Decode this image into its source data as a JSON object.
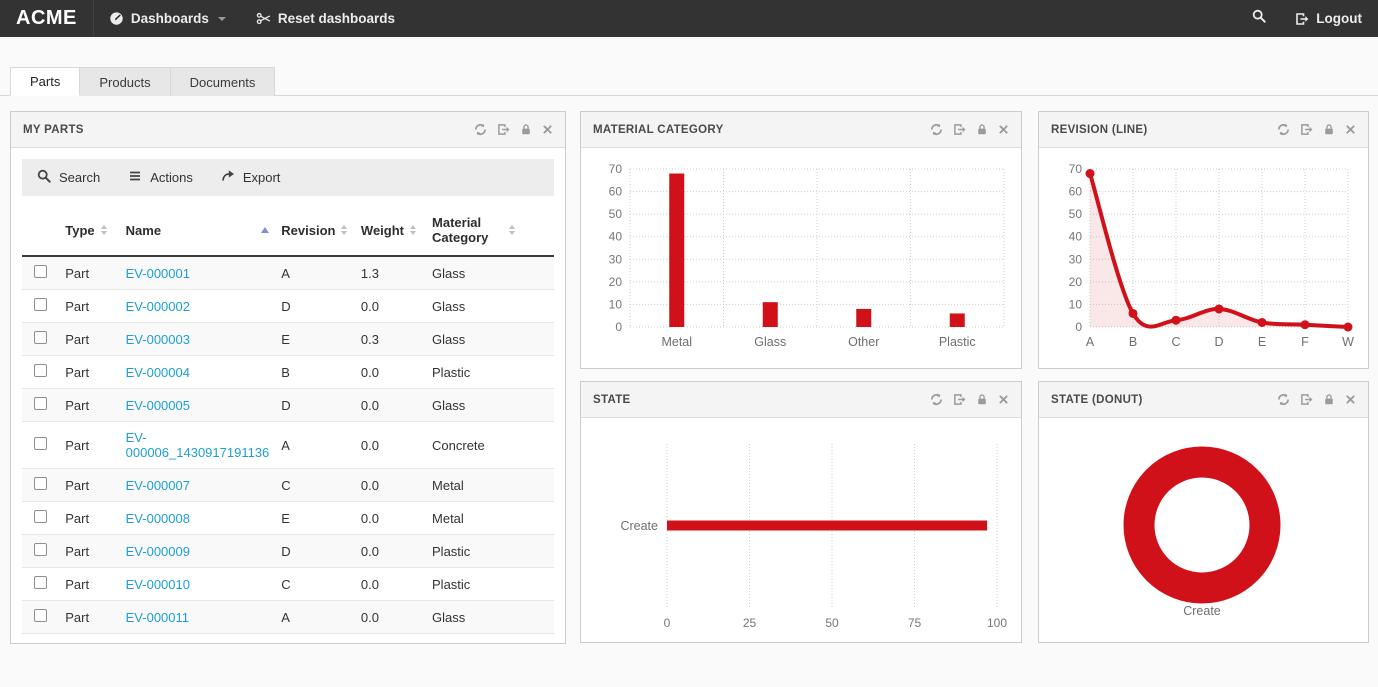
{
  "navbar": {
    "brand": "ACME",
    "dashboards_label": "Dashboards",
    "reset_label": "Reset dashboards",
    "logout_label": "Logout"
  },
  "tabs": {
    "parts": "Parts",
    "products": "Products",
    "documents": "Documents"
  },
  "panels": {
    "my_parts": {
      "title": "MY PARTS",
      "toolbar": {
        "search_label": "Search",
        "actions_label": "Actions",
        "export_label": "Export"
      },
      "table": {
        "columns": {
          "type": "Type",
          "name": "Name",
          "revision": "Revision",
          "weight": "Weight",
          "material": "Material Category"
        },
        "sort": {
          "column": "Name",
          "direction": "ascending"
        },
        "rows": [
          {
            "type": "Part",
            "name": "EV-000001",
            "revision": "A",
            "weight": "1.3",
            "material": "Glass"
          },
          {
            "type": "Part",
            "name": "EV-000002",
            "revision": "D",
            "weight": "0.0",
            "material": "Glass"
          },
          {
            "type": "Part",
            "name": "EV-000003",
            "revision": "E",
            "weight": "0.3",
            "material": "Glass"
          },
          {
            "type": "Part",
            "name": "EV-000004",
            "revision": "B",
            "weight": "0.0",
            "material": "Plastic"
          },
          {
            "type": "Part",
            "name": "EV-000005",
            "revision": "D",
            "weight": "0.0",
            "material": "Glass"
          },
          {
            "type": "Part",
            "name": "EV-000006_1430917191136",
            "revision": "A",
            "weight": "0.0",
            "material": "Concrete"
          },
          {
            "type": "Part",
            "name": "EV-000007",
            "revision": "C",
            "weight": "0.0",
            "material": "Metal"
          },
          {
            "type": "Part",
            "name": "EV-000008",
            "revision": "E",
            "weight": "0.0",
            "material": "Metal"
          },
          {
            "type": "Part",
            "name": "EV-000009",
            "revision": "D",
            "weight": "0.0",
            "material": "Plastic"
          },
          {
            "type": "Part",
            "name": "EV-000010",
            "revision": "C",
            "weight": "0.0",
            "material": "Plastic"
          },
          {
            "type": "Part",
            "name": "EV-000011",
            "revision": "A",
            "weight": "0.0",
            "material": "Glass"
          }
        ]
      }
    },
    "material_category": {
      "title": "MATERIAL CATEGORY"
    },
    "revision_line": {
      "title": "REVISION (LINE)"
    },
    "state": {
      "title": "STATE"
    },
    "state_donut": {
      "title": "STATE (DONUT)"
    }
  },
  "colors": {
    "accent_red": "#d0111a",
    "area_fill": "rgba(208,17,26,0.10)",
    "link_blue": "#1d9fd6",
    "navbar_bg": "#333333",
    "sort_active_arrow": "#7f8fd4",
    "grid_line": "#cfcfcf"
  },
  "chart_data": [
    {
      "id": "material-category-chart",
      "type": "bar",
      "title": "MATERIAL CATEGORY",
      "categories": [
        "Metal",
        "Glass",
        "Other",
        "Plastic"
      ],
      "values": [
        68,
        11,
        8,
        6
      ],
      "ylabel": "",
      "xlabel": "",
      "ylim": [
        0,
        70
      ],
      "ytick_step": 10,
      "grid": true,
      "legend": false,
      "color": "#d0111a"
    },
    {
      "id": "revision-line-chart",
      "type": "area",
      "title": "REVISION (LINE)",
      "categories": [
        "A",
        "B",
        "C",
        "D",
        "E",
        "F",
        "W"
      ],
      "values": [
        68,
        6,
        3,
        8,
        2,
        1,
        0
      ],
      "ylabel": "",
      "xlabel": "",
      "ylim": [
        0,
        70
      ],
      "ytick_step": 10,
      "grid": true,
      "legend": false,
      "color": "#d0111a",
      "fill": "rgba(208,17,26,0.10)",
      "smooth": true,
      "markers": true
    },
    {
      "id": "state-chart",
      "type": "horizontal-bar",
      "title": "STATE",
      "categories": [
        "Create"
      ],
      "values": [
        97
      ],
      "xlim": [
        0,
        100
      ],
      "xticks": [
        0,
        25,
        50,
        75,
        100
      ],
      "grid": true,
      "legend": false,
      "color": "#d0111a"
    },
    {
      "id": "state-donut-chart",
      "type": "donut",
      "title": "STATE (DONUT)",
      "labels": [
        "Create"
      ],
      "values": [
        100
      ],
      "legend": "bottom",
      "color": "#d0111a"
    }
  ]
}
